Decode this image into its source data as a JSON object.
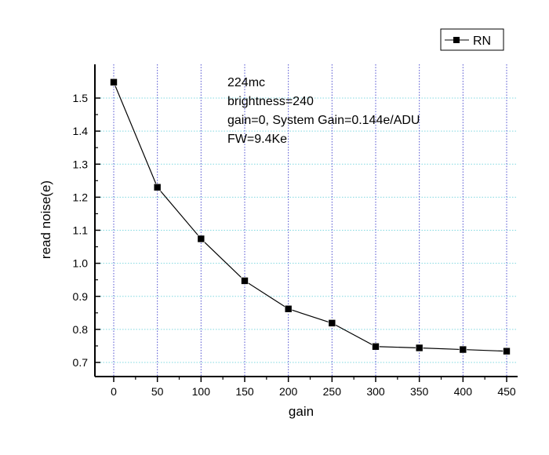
{
  "chart_data": {
    "type": "line",
    "title": "",
    "xlabel": "gain",
    "ylabel": "read noise(e)",
    "x": [
      0,
      50,
      100,
      150,
      200,
      250,
      300,
      350,
      400,
      450
    ],
    "series": [
      {
        "name": "RN",
        "marker": "square",
        "color": "#000000",
        "values": [
          1.548,
          1.23,
          1.074,
          0.947,
          0.862,
          0.819,
          0.748,
          0.744,
          0.739,
          0.734
        ]
      }
    ],
    "xlim": [
      -20,
      465
    ],
    "ylim": [
      0.658,
      1.608
    ],
    "xticks": [
      "0",
      "50",
      "100",
      "150",
      "200",
      "250",
      "300",
      "350",
      "400",
      "450"
    ],
    "yticks": [
      "0.7",
      "0.8",
      "0.9",
      "1.0",
      "1.1",
      "1.2",
      "1.3",
      "1.4",
      "1.5"
    ],
    "grid": true,
    "legend": {
      "position": "top-right",
      "entries": [
        "RN"
      ]
    },
    "annotations": [
      "224mc",
      "brightness=240",
      "gain=0, System Gain=0.144e/ADU",
      "FW=9.4Ke"
    ],
    "colors": {
      "vgrid": "#5050d0",
      "hgrid": "#80d8e0",
      "line": "#000000"
    }
  }
}
